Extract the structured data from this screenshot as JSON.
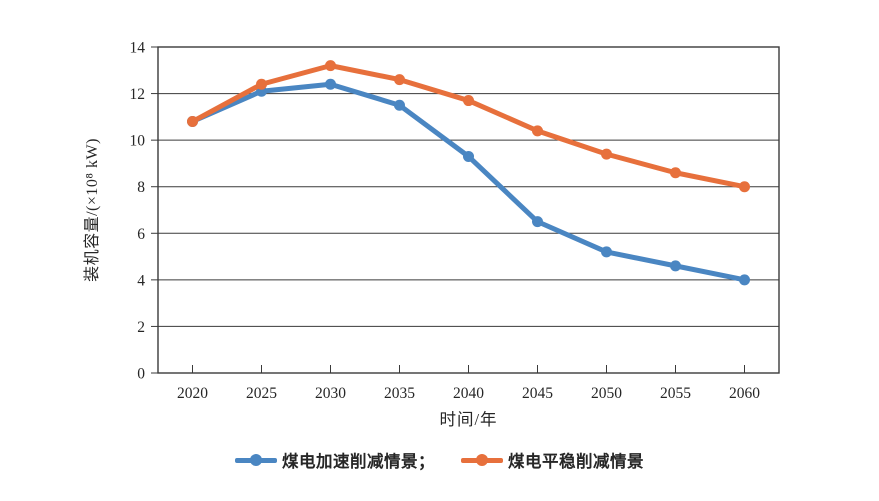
{
  "chart_data": {
    "type": "line",
    "title": "",
    "x": [
      2020,
      2025,
      2030,
      2035,
      2040,
      2045,
      2050,
      2055,
      2060
    ],
    "xlabel": "时间/年",
    "ylabel": "装机容量/(×10⁸ kW)",
    "ylim": [
      0,
      14
    ],
    "ytick_step": 2,
    "yticks": [
      0,
      2,
      4,
      6,
      8,
      10,
      12,
      14
    ],
    "grid": true,
    "grid_direction": "horizontal",
    "legend_position": "bottom",
    "axis_color": "#3a3a3a",
    "text_color": "#262626",
    "series": [
      {
        "name": "煤电加速削减情景",
        "color": "#4a86c2",
        "values": [
          10.8,
          12.1,
          12.4,
          11.5,
          9.3,
          6.5,
          5.2,
          4.6,
          4.0
        ]
      },
      {
        "name": "煤电平稳削减情景",
        "color": "#e7703c",
        "values": [
          10.8,
          12.4,
          13.2,
          12.6,
          11.7,
          10.4,
          9.4,
          8.6,
          8.0
        ]
      }
    ]
  },
  "axes": {
    "x_title": "时间/年",
    "y_title": "装机容量/(×10⁸ kW)"
  },
  "legend": {
    "items": [
      {
        "label": "煤电加速削减情景；",
        "color": "#4a86c2"
      },
      {
        "label": "煤电平稳削减情景",
        "color": "#e7703c"
      }
    ]
  }
}
